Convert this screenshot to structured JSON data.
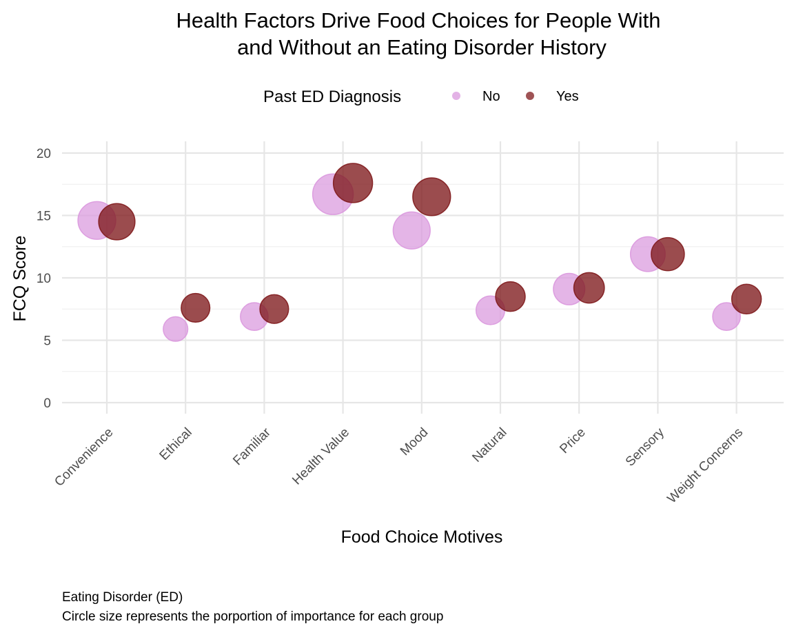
{
  "chart_data": {
    "type": "scatter",
    "title_lines": [
      "Health Factors Drive Food Choices for People With",
      "and Without an Eating Disorder History"
    ],
    "xlabel": "Food Choice Motives",
    "ylabel": "FCQ Score",
    "ylim": [
      0,
      20
    ],
    "yticks": [
      0,
      5,
      10,
      15,
      20
    ],
    "grid": true,
    "legend": {
      "title": "Past ED Diagnosis",
      "position": "top",
      "entries": [
        "No",
        "Yes"
      ]
    },
    "categories": [
      "Convenience",
      "Ethical",
      "Familiar",
      "Health Value",
      "Mood",
      "Natural",
      "Price",
      "Sensory",
      "Weight Concerns"
    ],
    "series": [
      {
        "name": "No",
        "color": "#DA98DE",
        "values": [
          14.6,
          5.9,
          6.9,
          16.7,
          13.8,
          7.4,
          9.1,
          11.9,
          6.9
        ],
        "size": [
          0.13,
          0.055,
          0.07,
          0.15,
          0.125,
          0.075,
          0.09,
          0.11,
          0.07
        ]
      },
      {
        "name": "Yes",
        "color": "#7F1A1C",
        "values": [
          14.5,
          7.6,
          7.5,
          17.6,
          16.5,
          8.5,
          9.2,
          11.9,
          8.3
        ],
        "size": [
          0.12,
          0.075,
          0.075,
          0.14,
          0.13,
          0.08,
          0.085,
          0.1,
          0.08
        ]
      }
    ],
    "caption_lines": [
      "Eating Disorder (ED)",
      "Circle size represents the porportion of importance for each group"
    ]
  }
}
